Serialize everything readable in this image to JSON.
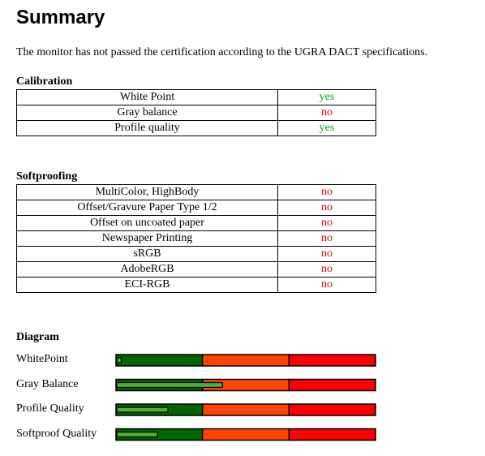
{
  "title": "Summary",
  "intro": "The monitor has not passed the certification according to the UGRA DACT specifications.",
  "calibration": {
    "heading": "Calibration",
    "rows": [
      [
        "White Point",
        "yes"
      ],
      [
        "Gray balance",
        "no"
      ],
      [
        "Profile quality",
        "yes"
      ]
    ]
  },
  "softproofing": {
    "heading": "Softproofing",
    "rows": [
      [
        "MultiColor, HighBody",
        "no"
      ],
      [
        "Offset/Gravure Paper Type 1/2",
        "no"
      ],
      [
        "Offset on uncoated paper",
        "no"
      ],
      [
        "Newspaper Printing",
        "no"
      ],
      [
        "sRGB",
        "no"
      ],
      [
        "AdobeRGB",
        "no"
      ],
      [
        "ECI-RGB",
        "no"
      ]
    ]
  },
  "diagram": {
    "heading": "Diagram",
    "xlim": [
      0,
      100
    ],
    "labels": [
      "WhitePoint",
      "Gray Balance",
      "Profile Quality",
      "Softproof Quality"
    ],
    "values": [
      2,
      41,
      20,
      16
    ]
  }
}
